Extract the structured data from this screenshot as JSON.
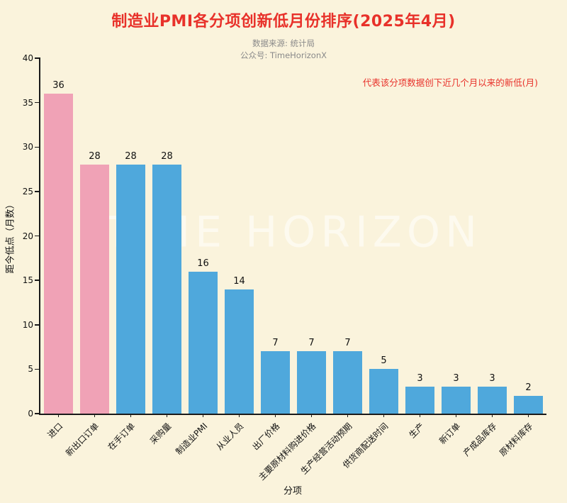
{
  "title": "制造业PMI各分项创新低月份排序(2025年4月)",
  "subtitle_line1": "数据来源: 统计局",
  "subtitle_line2": "公众号: TimeHorizonX",
  "annotation": "代表该分项数据创下近几个月以来的新低(月)",
  "watermark": "TIME HORIZON",
  "colors": {
    "background": "#faf3dc",
    "title": "#e8312a",
    "subtitle": "#8a8a8a",
    "axis": "#1a1a1a"
  },
  "chart_data": {
    "type": "bar",
    "title": "制造业PMI各分项创新低月份排序(2025年4月)",
    "categories": [
      "进口",
      "新出口订单",
      "在手订单",
      "采购量",
      "制造业PMI",
      "从业人员",
      "出厂价格",
      "主要原材料购进价格",
      "生产经营活动预期",
      "供货商配送时间",
      "生产",
      "新订单",
      "产成品库存",
      "原材料库存"
    ],
    "values": [
      36,
      28,
      28,
      28,
      16,
      14,
      7,
      7,
      7,
      5,
      3,
      3,
      3,
      2
    ],
    "bar_color_keys": [
      "pink",
      "pink",
      "blue",
      "blue",
      "blue",
      "blue",
      "blue",
      "blue",
      "blue",
      "blue",
      "blue",
      "blue",
      "blue",
      "blue"
    ],
    "palette": {
      "pink": "#f0a2b6",
      "blue": "#4fa8dc"
    },
    "xlabel": "分项",
    "ylabel": "距今低点（月数）",
    "ylim": [
      0,
      40
    ],
    "yticks": [
      0,
      5,
      10,
      15,
      20,
      25,
      30,
      35,
      40
    ],
    "grid": false,
    "legend": "none"
  }
}
